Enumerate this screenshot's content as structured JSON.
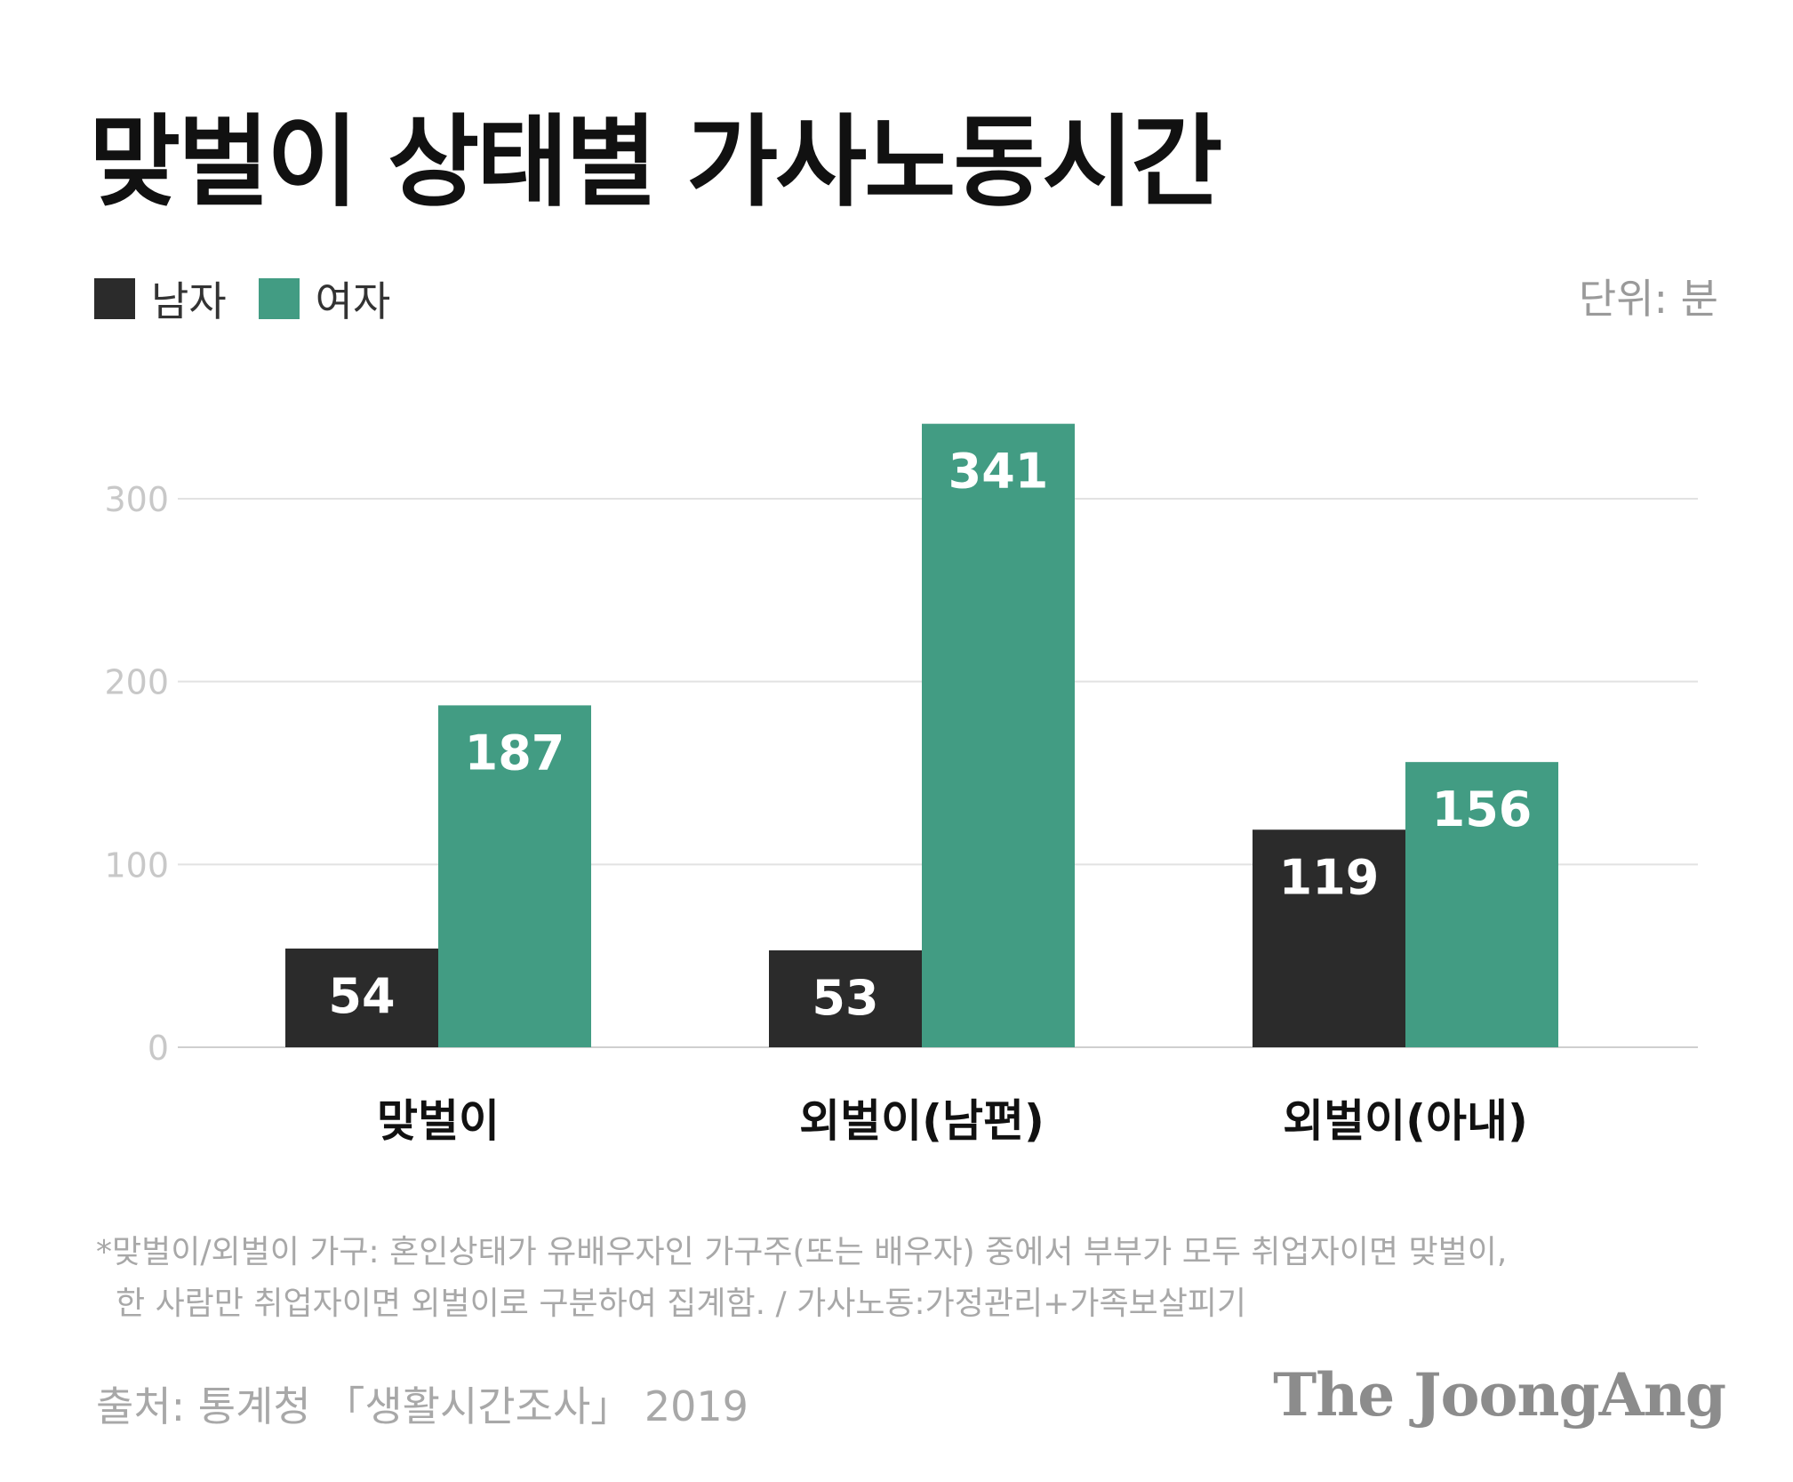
{
  "chart_data": {
    "type": "bar",
    "title": "맞벌이 상태별 가사노동시간",
    "unit_label": "단위: 분",
    "categories": [
      "맞벌이",
      "외벌이(남편)",
      "외벌이(아내)"
    ],
    "series": [
      {
        "name": "남자",
        "color": "#2b2b2b",
        "values": [
          54,
          53,
          119
        ]
      },
      {
        "name": "여자",
        "color": "#429c83",
        "values": [
          187,
          341,
          156
        ]
      }
    ],
    "yticks": [
      "0",
      "100",
      "200",
      "300"
    ],
    "ylim": [
      0,
      360
    ],
    "grid": true,
    "legend_position": "top-left"
  },
  "note": {
    "line1": "*맞벌이/외벌이 가구: 혼인상태가 유배우자인 가구주(또는 배우자) 중에서 부부가 모두 취업자이면 맞벌이,",
    "line2": "한 사람만 취업자이면 외벌이로 구분하여 집계함. / 가사노동:가정관리+가족보살피기"
  },
  "source": "출처: 통계청 「생활시간조사」 2019",
  "brand": "The JoongAng"
}
